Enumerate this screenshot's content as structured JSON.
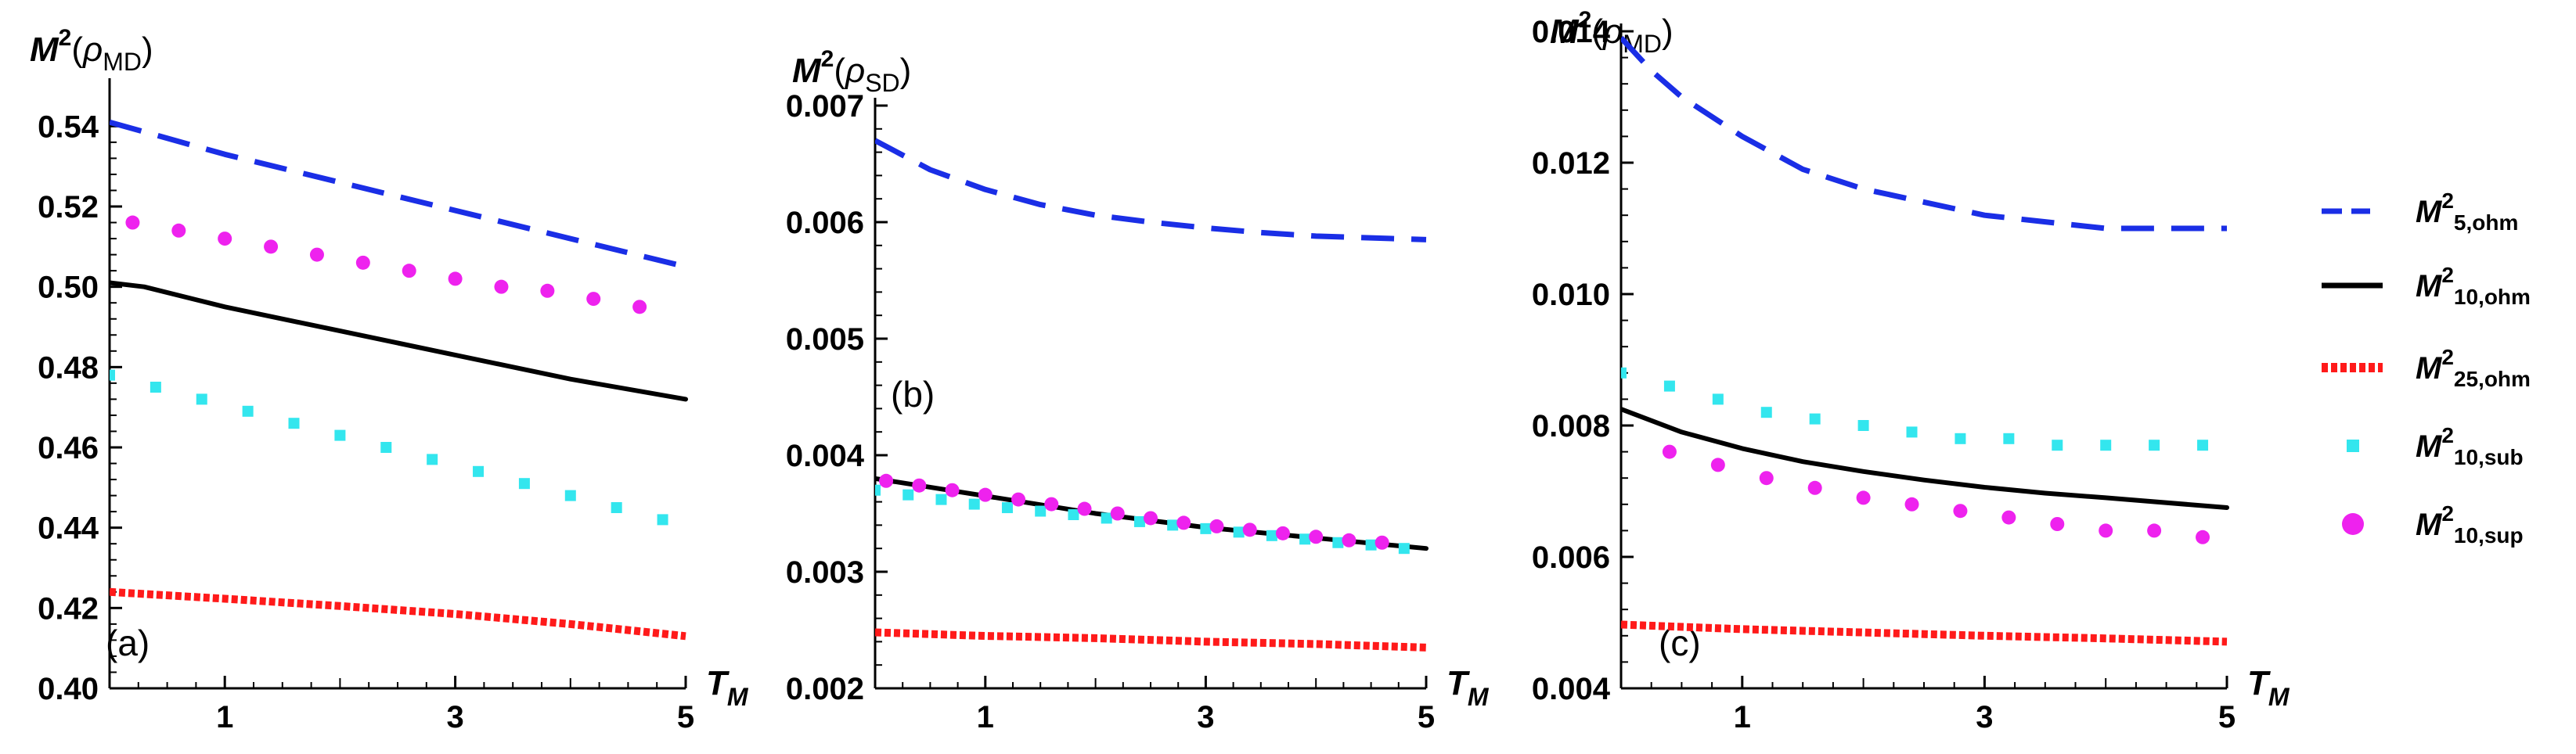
{
  "chart_data": [
    {
      "type": "line",
      "panel_label": "(a)",
      "ylabel": "M²(ρMD)",
      "xlabel": "T_M",
      "xlim": [
        0,
        5
      ],
      "ylim": [
        0.4,
        0.55
      ],
      "xticks": [
        "1",
        "3",
        "5"
      ],
      "yticks": [
        "0.40",
        "0.42",
        "0.44",
        "0.46",
        "0.48",
        "0.50",
        "0.52",
        "0.54"
      ],
      "series": [
        {
          "name": "M2_5_ohm",
          "x": [
            0,
            1,
            2,
            3,
            4,
            5
          ],
          "y": [
            0.541,
            0.533,
            0.526,
            0.519,
            0.512,
            0.505
          ]
        },
        {
          "name": "M2_10_ohm",
          "x": [
            0,
            0.3,
            1,
            2,
            3,
            4,
            5
          ],
          "y": [
            0.501,
            0.5,
            0.495,
            0.489,
            0.483,
            0.477,
            0.472
          ]
        },
        {
          "name": "M2_25_ohm",
          "x": [
            0,
            1,
            2,
            3,
            4,
            5
          ],
          "y": [
            0.424,
            0.4223,
            0.4205,
            0.4185,
            0.416,
            0.413
          ]
        },
        {
          "name": "M2_10_sub",
          "x": [
            0,
            0.4,
            0.8,
            1.2,
            1.6,
            2.0,
            2.4,
            2.8,
            3.2,
            3.6,
            4.0,
            4.4,
            4.8
          ],
          "y": [
            0.478,
            0.475,
            0.472,
            0.469,
            0.466,
            0.463,
            0.46,
            0.457,
            0.454,
            0.451,
            0.448,
            0.445,
            0.442
          ]
        },
        {
          "name": "M2_10_sup",
          "x": [
            0.2,
            0.6,
            1.0,
            1.4,
            1.8,
            2.2,
            2.6,
            3.0,
            3.4,
            3.8,
            4.2,
            4.6
          ],
          "y": [
            0.516,
            0.514,
            0.512,
            0.51,
            0.508,
            0.506,
            0.504,
            0.502,
            0.5,
            0.499,
            0.497,
            0.495
          ]
        }
      ]
    },
    {
      "type": "line",
      "panel_label": "(b)",
      "ylabel": "M²(ρSD)",
      "xlabel": "T_M",
      "xlim": [
        0,
        5
      ],
      "ylim": [
        0.002,
        0.007
      ],
      "xticks": [
        "1",
        "3",
        "5"
      ],
      "yticks": [
        "0.002",
        "0.003",
        "0.004",
        "0.005",
        "0.006",
        "0.007"
      ],
      "series": [
        {
          "name": "M2_5_ohm",
          "x": [
            0,
            0.5,
            1,
            1.5,
            2,
            2.5,
            3,
            3.5,
            4,
            5
          ],
          "y": [
            0.0067,
            0.00645,
            0.00628,
            0.00615,
            0.00606,
            0.006,
            0.00595,
            0.00591,
            0.00588,
            0.00585
          ]
        },
        {
          "name": "M2_10_ohm",
          "x": [
            0,
            1,
            2,
            3,
            4,
            5
          ],
          "y": [
            0.0038,
            0.00365,
            0.0035,
            0.00338,
            0.00329,
            0.0032
          ]
        },
        {
          "name": "M2_25_ohm",
          "x": [
            0,
            1,
            2,
            3,
            4,
            5
          ],
          "y": [
            0.00248,
            0.00245,
            0.00243,
            0.0024,
            0.00238,
            0.00235
          ]
        },
        {
          "name": "M2_10_sub",
          "x": [
            0,
            0.3,
            0.6,
            0.9,
            1.2,
            1.5,
            1.8,
            2.1,
            2.4,
            2.7,
            3.0,
            3.3,
            3.6,
            3.9,
            4.2,
            4.5,
            4.8
          ],
          "y": [
            0.0037,
            0.00366,
            0.00362,
            0.00358,
            0.00355,
            0.00352,
            0.00349,
            0.00346,
            0.00343,
            0.0034,
            0.00337,
            0.00334,
            0.00331,
            0.00328,
            0.00325,
            0.00323,
            0.0032
          ]
        },
        {
          "name": "M2_10_sup",
          "x": [
            0.1,
            0.4,
            0.7,
            1.0,
            1.3,
            1.6,
            1.9,
            2.2,
            2.5,
            2.8,
            3.1,
            3.4,
            3.7,
            4.0,
            4.3,
            4.6
          ],
          "y": [
            0.00378,
            0.00374,
            0.0037,
            0.00366,
            0.00362,
            0.00358,
            0.00354,
            0.0035,
            0.00346,
            0.00342,
            0.00339,
            0.00336,
            0.00333,
            0.0033,
            0.00327,
            0.00325
          ]
        }
      ]
    },
    {
      "type": "line",
      "panel_label": "(c)",
      "ylabel": "M²(ρMD)",
      "xlabel": "T_M",
      "xlim": [
        0,
        5
      ],
      "ylim": [
        0.004,
        0.014
      ],
      "xticks": [
        "1",
        "3",
        "5"
      ],
      "yticks": [
        "0.004",
        "0.006",
        "0.008",
        "0.010",
        "0.012",
        "0.014"
      ],
      "series": [
        {
          "name": "M2_5_ohm",
          "x": [
            0,
            0.25,
            0.5,
            1,
            1.5,
            2,
            2.5,
            3,
            3.5,
            4,
            5
          ],
          "y": [
            0.0139,
            0.0134,
            0.013,
            0.0124,
            0.0119,
            0.0116,
            0.0114,
            0.0112,
            0.0111,
            0.011,
            0.011
          ]
        },
        {
          "name": "M2_10_ohm",
          "x": [
            0,
            0.5,
            1,
            1.5,
            2,
            2.5,
            3,
            3.5,
            4,
            5
          ],
          "y": [
            0.00825,
            0.0079,
            0.00765,
            0.00745,
            0.0073,
            0.00717,
            0.00706,
            0.00697,
            0.0069,
            0.00675
          ]
        },
        {
          "name": "M2_25_ohm",
          "x": [
            0,
            1,
            2,
            3,
            4,
            5
          ],
          "y": [
            0.00497,
            0.0049,
            0.00485,
            0.0048,
            0.00476,
            0.00471
          ]
        },
        {
          "name": "M2_10_sub",
          "x": [
            0,
            0.4,
            0.8,
            1.2,
            1.6,
            2.0,
            2.4,
            2.8,
            3.2,
            3.6,
            4.0,
            4.4,
            4.8
          ],
          "y": [
            0.0088,
            0.0086,
            0.0084,
            0.0082,
            0.0081,
            0.008,
            0.0079,
            0.0078,
            0.0078,
            0.0077,
            0.0077,
            0.0077,
            0.0077
          ]
        },
        {
          "name": "M2_10_sup",
          "x": [
            0.4,
            0.8,
            1.2,
            1.6,
            2.0,
            2.4,
            2.8,
            3.2,
            3.6,
            4.0,
            4.4,
            4.8
          ],
          "y": [
            0.0076,
            0.0074,
            0.0072,
            0.00705,
            0.0069,
            0.0068,
            0.0067,
            0.0066,
            0.0065,
            0.0064,
            0.0064,
            0.0063
          ]
        }
      ]
    }
  ],
  "legend": {
    "items": [
      {
        "key": "M2_5_ohm",
        "label": "M²5,ohm",
        "style": "dashed",
        "color": "#1a2ee6"
      },
      {
        "key": "M2_10_ohm",
        "label": "M²10,ohm",
        "style": "solid",
        "color": "#000000"
      },
      {
        "key": "M2_25_ohm",
        "label": "M²25,ohm",
        "style": "dotted-thick",
        "color": "#ff1a1a"
      },
      {
        "key": "M2_10_sub",
        "label": "M²10,sub",
        "style": "squares",
        "color": "#33e6ee"
      },
      {
        "key": "M2_10_sup",
        "label": "M²10,sup",
        "style": "circles",
        "color": "#ee22ee"
      }
    ]
  }
}
